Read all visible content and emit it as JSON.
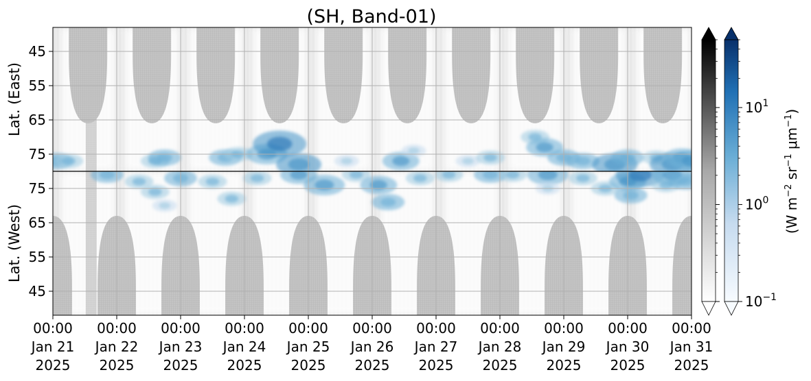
{
  "chart_data": {
    "type": "heatmap",
    "title": "(SH, Band-01)",
    "upper_ylabel": "Lat. (East)",
    "lower_ylabel": "Lat. (West)",
    "upper_yticks": [
      45,
      55,
      65,
      75
    ],
    "lower_yticks": [
      75,
      65,
      55,
      45
    ],
    "upper_ylim": [
      38,
      80
    ],
    "lower_ylim": [
      80,
      38
    ],
    "x_start": "2025-01-21 00:00",
    "x_end": "2025-01-31 00:00",
    "x_ticks": [
      {
        "time": "00:00",
        "date": "Jan 21",
        "year": "2025"
      },
      {
        "time": "00:00",
        "date": "Jan 22",
        "year": "2025"
      },
      {
        "time": "00:00",
        "date": "Jan 23",
        "year": "2025"
      },
      {
        "time": "00:00",
        "date": "Jan 24",
        "year": "2025"
      },
      {
        "time": "00:00",
        "date": "Jan 25",
        "year": "2025"
      },
      {
        "time": "00:00",
        "date": "Jan 26",
        "year": "2025"
      },
      {
        "time": "00:00",
        "date": "Jan 27",
        "year": "2025"
      },
      {
        "time": "00:00",
        "date": "Jan 28",
        "year": "2025"
      },
      {
        "time": "00:00",
        "date": "Jan 29",
        "year": "2025"
      },
      {
        "time": "00:00",
        "date": "Jan 30",
        "year": "2025"
      },
      {
        "time": "00:00",
        "date": "Jan 31",
        "year": "2025"
      }
    ],
    "daylight_shadow_centers_days": [
      0.55,
      1.55,
      2.55,
      3.55,
      4.55,
      5.55,
      6.55,
      7.55,
      8.55,
      9.55
    ],
    "night_shadow_centers_days": [
      0.0,
      1.0,
      2.0,
      3.0,
      4.0,
      5.0,
      6.0,
      7.0,
      8.0,
      9.0,
      10.0
    ],
    "grid": true,
    "colorbar": {
      "label_prefix": "(W m",
      "label_exp1": "−2",
      "label_mid": " sr",
      "label_exp2": "−1",
      "label_mu": " μm",
      "label_exp3": "−1",
      "label_suffix": ")",
      "scale": "log",
      "range": [
        0.1,
        50
      ],
      "extend": "both",
      "ticks": [
        {
          "base": "10",
          "exp": "1",
          "value": 10
        },
        {
          "base": "10",
          "exp": "0",
          "value": 1
        },
        {
          "base": "10",
          "exp": "−1",
          "value": 0.1
        }
      ],
      "gray_cmap": [
        "#ffffff",
        "#000000"
      ],
      "blue_cmap": [
        "#f7fbff",
        "#c6dbef",
        "#6baed6",
        "#2171b5",
        "#08306b"
      ]
    },
    "upper_blobs": [
      {
        "day": 0.05,
        "lat": 77,
        "value": 3
      },
      {
        "day": 0.25,
        "lat": 77,
        "value": 2
      },
      {
        "day": 1.6,
        "lat": 77,
        "value": 2
      },
      {
        "day": 1.75,
        "lat": 76,
        "value": 3
      },
      {
        "day": 2.7,
        "lat": 76,
        "value": 3
      },
      {
        "day": 2.9,
        "lat": 75,
        "value": 2
      },
      {
        "day": 3.35,
        "lat": 75,
        "value": 5
      },
      {
        "day": 3.55,
        "lat": 72,
        "value": 8
      },
      {
        "day": 3.85,
        "lat": 78,
        "value": 6
      },
      {
        "day": 4.6,
        "lat": 77,
        "value": 1
      },
      {
        "day": 5.45,
        "lat": 77,
        "value": 4
      },
      {
        "day": 5.65,
        "lat": 74,
        "value": 1
      },
      {
        "day": 6.5,
        "lat": 77,
        "value": 1
      },
      {
        "day": 6.85,
        "lat": 76,
        "value": 2
      },
      {
        "day": 7.55,
        "lat": 70,
        "value": 2
      },
      {
        "day": 7.7,
        "lat": 73,
        "value": 4
      },
      {
        "day": 8.0,
        "lat": 76,
        "value": 3
      },
      {
        "day": 8.3,
        "lat": 77,
        "value": 3
      },
      {
        "day": 8.8,
        "lat": 78,
        "value": 6
      },
      {
        "day": 9.0,
        "lat": 76,
        "value": 3
      },
      {
        "day": 9.45,
        "lat": 76,
        "value": 2
      },
      {
        "day": 9.7,
        "lat": 78,
        "value": 6
      },
      {
        "day": 9.85,
        "lat": 76,
        "value": 4
      },
      {
        "day": 10.0,
        "lat": 77,
        "value": 5
      }
    ],
    "lower_blobs": [
      {
        "day": 0.85,
        "lat": 79,
        "value": 3
      },
      {
        "day": 1.35,
        "lat": 77,
        "value": 2
      },
      {
        "day": 1.6,
        "lat": 74,
        "value": 2
      },
      {
        "day": 1.75,
        "lat": 70,
        "value": 1
      },
      {
        "day": 2.0,
        "lat": 78,
        "value": 3
      },
      {
        "day": 2.5,
        "lat": 77,
        "value": 2
      },
      {
        "day": 2.8,
        "lat": 72,
        "value": 2
      },
      {
        "day": 3.2,
        "lat": 78,
        "value": 2
      },
      {
        "day": 3.85,
        "lat": 79,
        "value": 4
      },
      {
        "day": 4.25,
        "lat": 76,
        "value": 5
      },
      {
        "day": 4.75,
        "lat": 79,
        "value": 2
      },
      {
        "day": 5.1,
        "lat": 76,
        "value": 4
      },
      {
        "day": 5.25,
        "lat": 71,
        "value": 3
      },
      {
        "day": 5.75,
        "lat": 78,
        "value": 2
      },
      {
        "day": 6.2,
        "lat": 79,
        "value": 2
      },
      {
        "day": 6.85,
        "lat": 79,
        "value": 3
      },
      {
        "day": 7.2,
        "lat": 79,
        "value": 2
      },
      {
        "day": 7.75,
        "lat": 79,
        "value": 5
      },
      {
        "day": 7.75,
        "lat": 75,
        "value": 1
      },
      {
        "day": 8.3,
        "lat": 78,
        "value": 2
      },
      {
        "day": 8.65,
        "lat": 75,
        "value": 2
      },
      {
        "day": 9.0,
        "lat": 77,
        "value": 4
      },
      {
        "day": 9.05,
        "lat": 73,
        "value": 3
      },
      {
        "day": 9.2,
        "lat": 79,
        "value": 7
      },
      {
        "day": 9.6,
        "lat": 76,
        "value": 2
      },
      {
        "day": 9.7,
        "lat": 79,
        "value": 5
      },
      {
        "day": 9.9,
        "lat": 77,
        "value": 3
      }
    ]
  }
}
